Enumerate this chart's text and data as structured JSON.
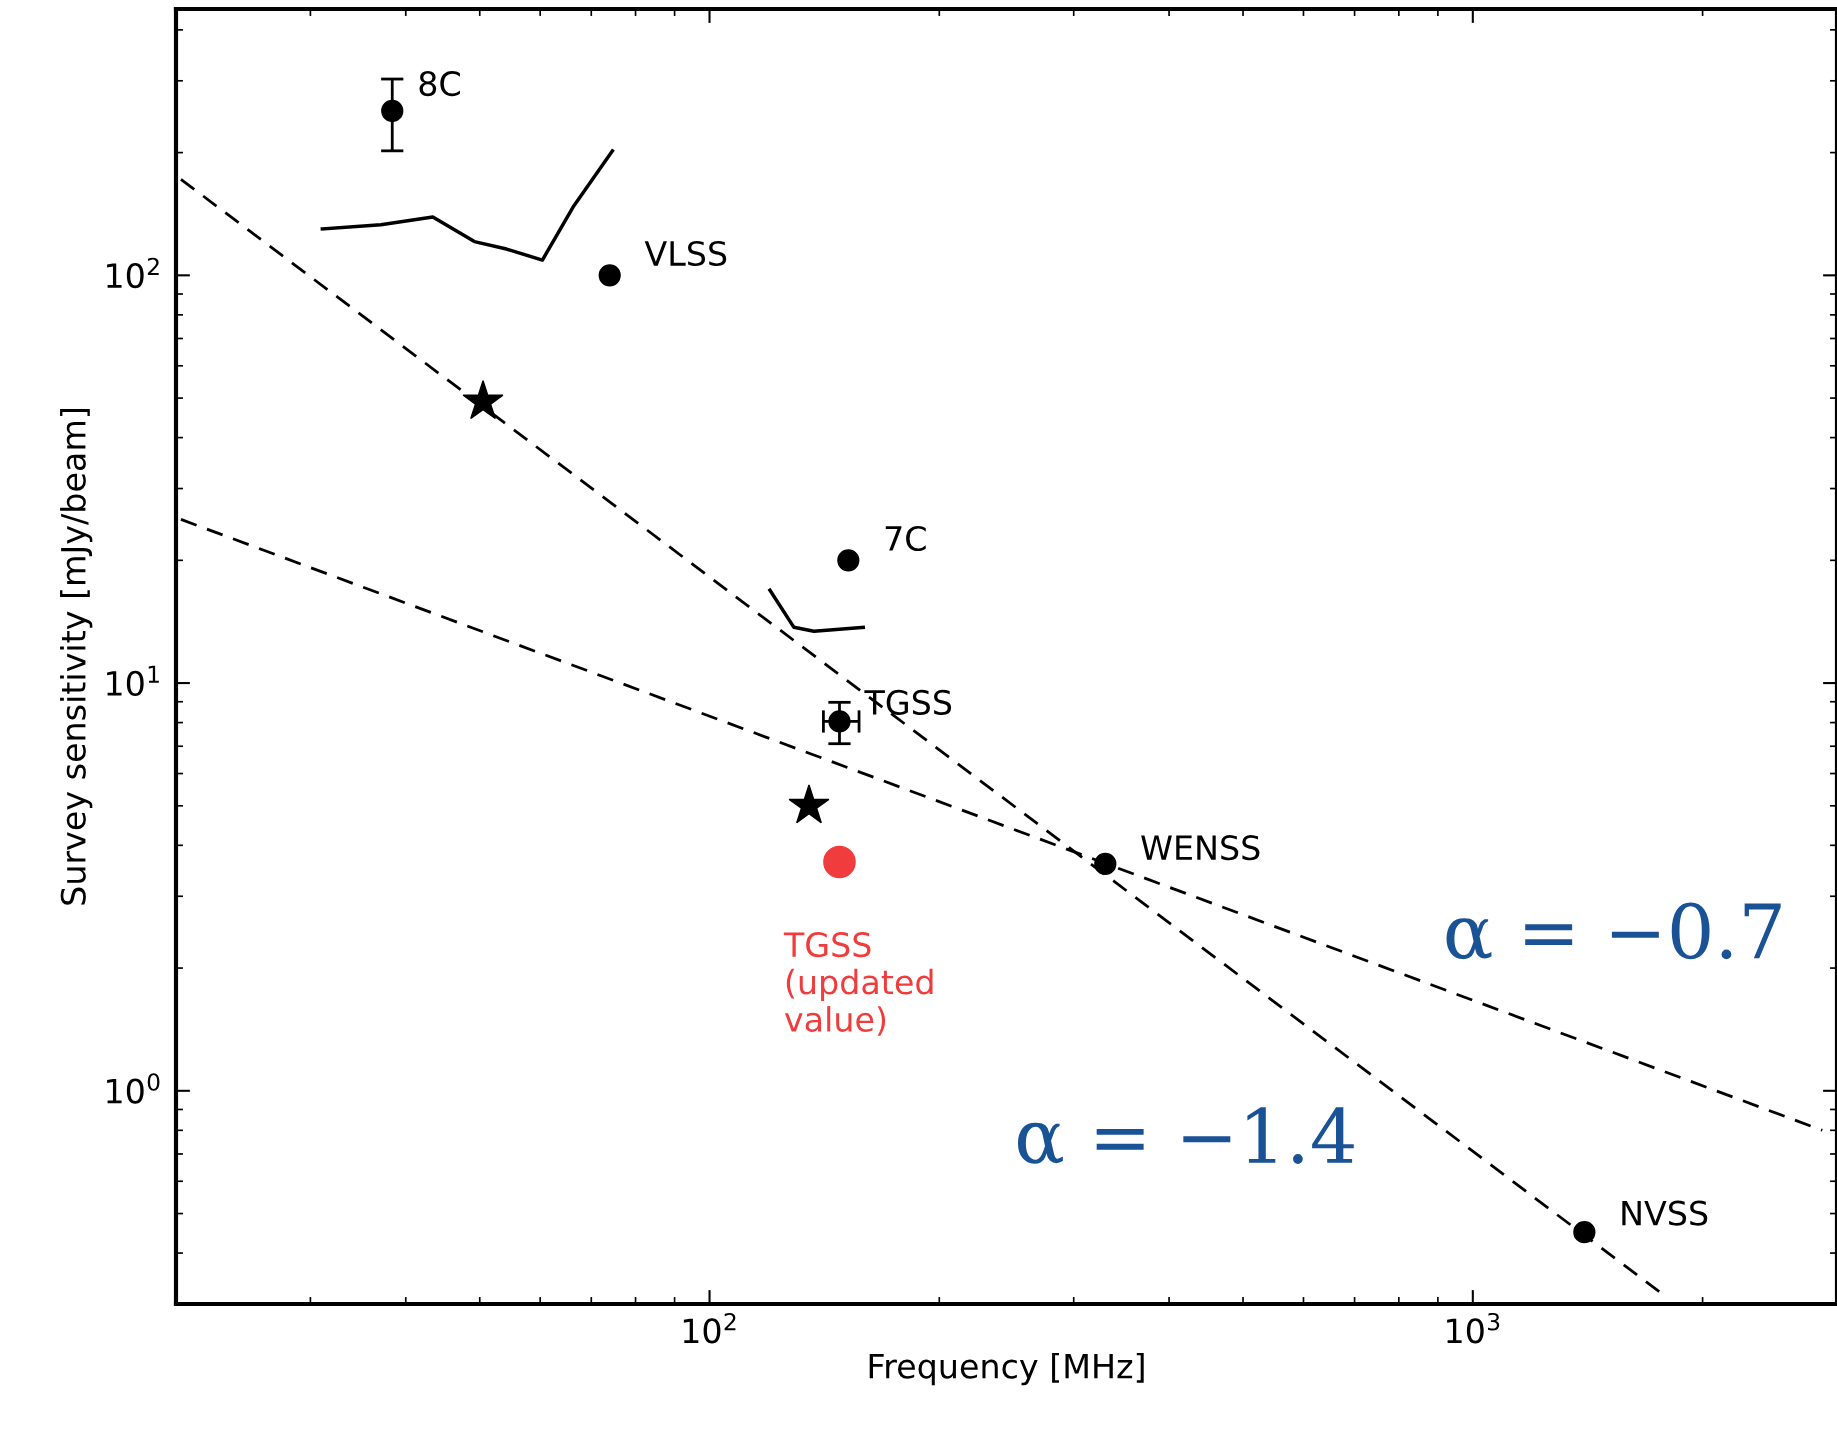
{
  "chart_data": {
    "type": "scatter",
    "xlabel": "Frequency [MHz]",
    "ylabel": "Survey sensitivity [mJy/beam]",
    "log": "xy",
    "grid": false,
    "xlim": [
      20,
      3000
    ],
    "ylim": [
      0.3,
      450
    ],
    "xticks": [
      {
        "value": 100,
        "label": "10$^{2}$"
      },
      {
        "value": 1000,
        "label": "10$^{3}$"
      }
    ],
    "yticks": [
      {
        "value": 1,
        "label": "10$^{0}$"
      },
      {
        "value": 10,
        "label": "10$^{1}$"
      },
      {
        "value": 100,
        "label": "10$^{2}$"
      }
    ],
    "series": [
      {
        "marker": "circle",
        "color": "#000000",
        "x": [
          38.4,
          74,
          152,
          148,
          330,
          1400
        ],
        "values": [
          253,
          100,
          20,
          8.05,
          3.6,
          0.45
        ],
        "errors": [
          [
            202,
            303
          ],
          null,
          null,
          [
            7.1,
            8.97
          ],
          null,
          null
        ],
        "xerrors": [
          null,
          null,
          null,
          [
            141,
            157
          ],
          null,
          null
        ]
      },
      {
        "marker": "star",
        "color": "#000000",
        "x": [
          50.5,
          135
        ],
        "values": [
          49,
          5.0
        ]
      },
      {
        "marker": "circle",
        "color": "#f03c3c",
        "x": [
          148
        ],
        "values": [
          3.64
        ]
      },
      {
        "type": "line",
        "line_style": "dashed",
        "color": "#000000",
        "x": [
          20.3,
          1762
        ],
        "values": [
          172,
          0.32
        ]
      },
      {
        "type": "line",
        "line_style": "dashed",
        "color": "#000000",
        "x": [
          20.3,
          2870
        ],
        "values": [
          25.2,
          0.8
        ]
      },
      {
        "type": "line",
        "line_style": "solid",
        "color": "#000000",
        "x": [
          31.1,
          37.1,
          43.4,
          49.2,
          54.2,
          60.4,
          66.4,
          74.6
        ],
        "values": [
          130,
          133,
          139,
          121,
          116,
          109,
          148,
          202
        ]
      },
      {
        "type": "line",
        "line_style": "solid",
        "color": "#000000",
        "x": [
          120,
          129,
          137,
          159
        ],
        "values": [
          16.9,
          13.7,
          13.4,
          13.7
        ]
      }
    ],
    "annotations": [
      {
        "text": "8C",
        "x": 38.4,
        "y": 253
      },
      {
        "text": "VLSS",
        "x": 74,
        "y": 100
      },
      {
        "text": "7C",
        "x": 152,
        "y": 20
      },
      {
        "text": "TGSS",
        "x": 148,
        "y": 8.05
      },
      {
        "text": "WENSS",
        "x": 330,
        "y": 3.6
      },
      {
        "text": "NVSS",
        "x": 1400,
        "y": 0.45
      },
      {
        "text": "TGSS\n(updated\nvalue)",
        "x": 148,
        "y": 3.64
      },
      "α = −0.7",
      "α = −1.4"
    ]
  }
}
